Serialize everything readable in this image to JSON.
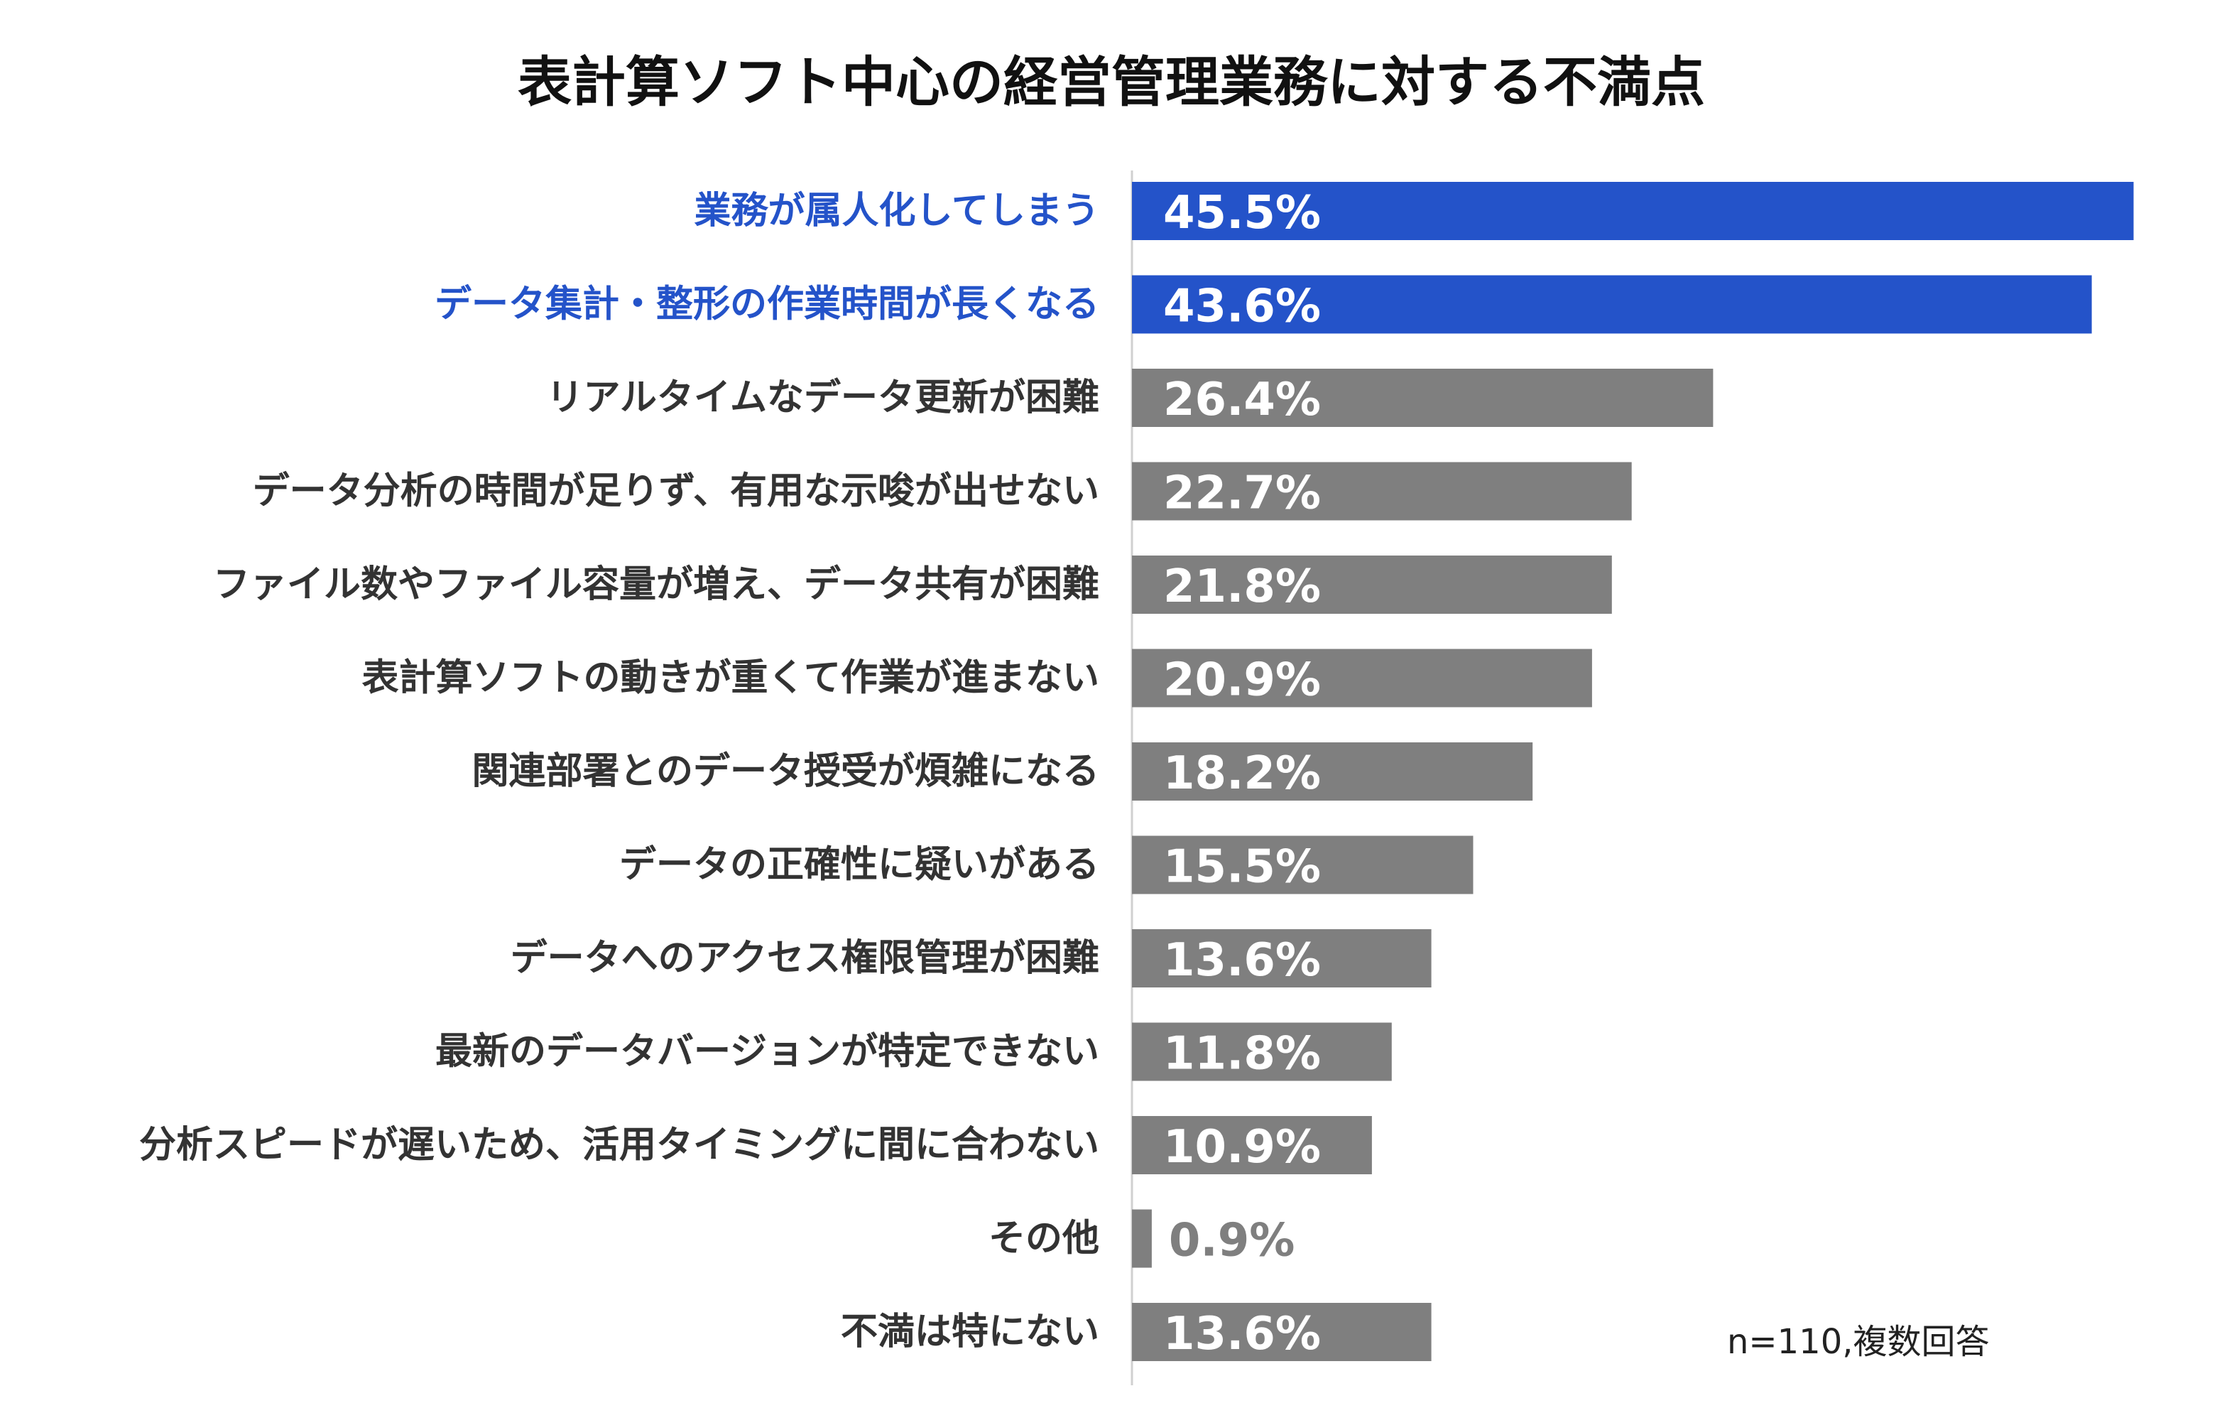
{
  "chart_data": {
    "type": "bar",
    "orientation": "horizontal",
    "title": "表計算ソフト中心の経営管理業務に対する不満点",
    "note": "n=110,複数回答",
    "unit": "%",
    "xlim": [
      0,
      46
    ],
    "categories": [
      "業務が属人化してしまう",
      "データ集計・整形の作業時間が長くなる",
      "リアルタイムなデータ更新が困難",
      "データ分析の時間が足りず、有用な示唆が出せない",
      "ファイル数やファイル容量が増え、データ共有が困難",
      "表計算ソフトの動きが重くて作業が進まない",
      "関連部署とのデータ授受が煩雑になる",
      "データの正確性に疑いがある",
      "データへのアクセス権限管理が困難",
      "最新のデータバージョンが特定できない",
      "分析スピードが遅いため、活用タイミングに間に合わない",
      "その他",
      "不満は特にない"
    ],
    "values": [
      45.5,
      43.6,
      26.4,
      22.7,
      21.8,
      20.9,
      18.2,
      15.5,
      13.6,
      11.8,
      10.9,
      0.9,
      13.6
    ],
    "value_labels": [
      "45.5%",
      "43.6%",
      "26.4%",
      "22.7%",
      "21.8%",
      "20.9%",
      "18.2%",
      "15.5%",
      "13.6%",
      "11.8%",
      "10.9%",
      "0.9%",
      "13.6%"
    ],
    "highlighted": [
      true,
      true,
      false,
      false,
      false,
      false,
      false,
      false,
      false,
      false,
      false,
      false,
      false
    ],
    "colors": {
      "highlight_bar": "#2453c9",
      "highlight_label": "#2453c9",
      "default_bar": "#7f7f7f",
      "default_label": "#333333",
      "bar_value_text": "#ffffff",
      "outside_value_text": "#7f7f7f",
      "axis_line": "#d0d0d0"
    }
  }
}
